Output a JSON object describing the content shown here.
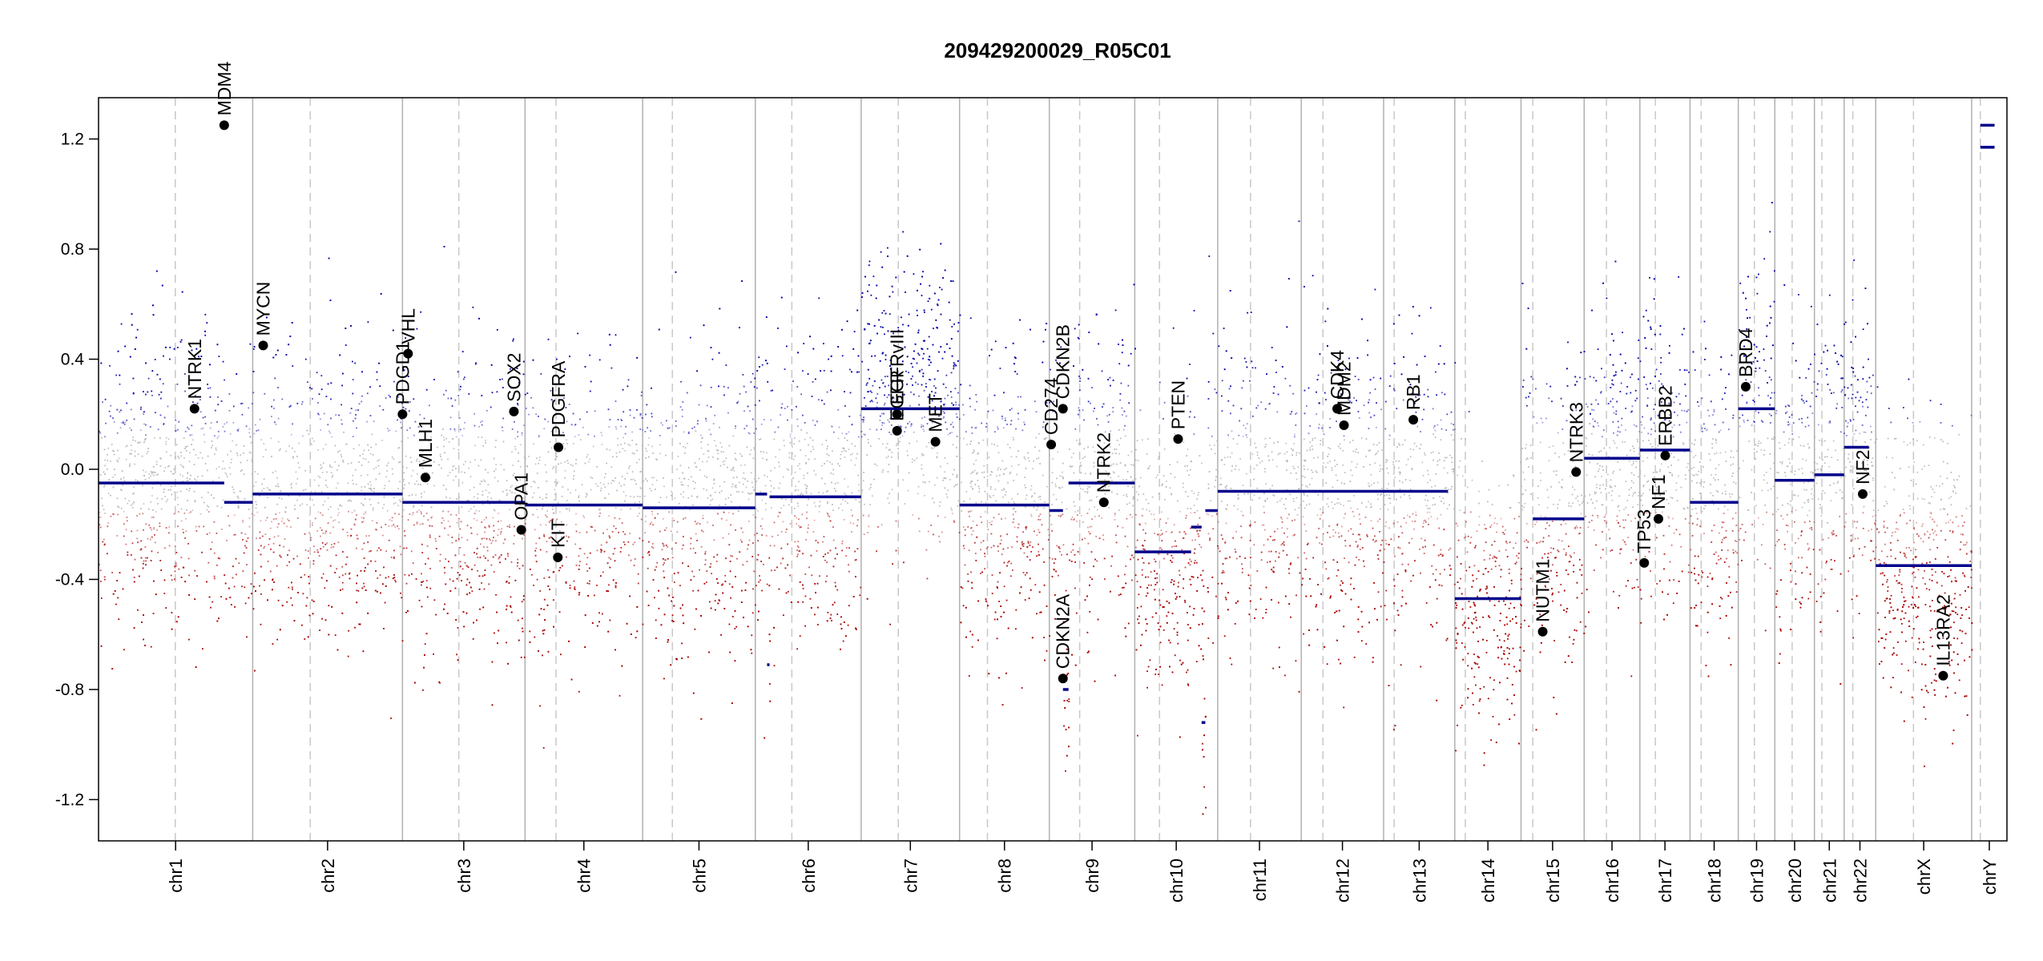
{
  "chart_data": {
    "type": "scatter",
    "title": "209429200029_R05C01",
    "xlabel": "",
    "ylabel": "",
    "ylim": [
      -1.35,
      1.35
    ],
    "y_ticks": [
      -1.2,
      -0.8,
      -0.4,
      0.0,
      0.4,
      0.8,
      1.2
    ],
    "y_tick_labels": [
      "-1.2",
      "-0.8",
      "-0.4",
      "0.0",
      "0.4",
      "0.8",
      "1.2"
    ],
    "grid": false,
    "colors": {
      "gain": "#0000aa",
      "neutral": "#bbbbbb",
      "loss": "#aa0000",
      "segment": "#00008b",
      "boundary": "#b0b0b0",
      "centromere": "#c8c8c8"
    },
    "chromosomes": [
      {
        "name": "chr1",
        "start": 0,
        "end": 249,
        "centromere": 124
      },
      {
        "name": "chr2",
        "start": 249,
        "end": 491,
        "centromere": 342
      },
      {
        "name": "chr3",
        "start": 491,
        "end": 689,
        "centromere": 582
      },
      {
        "name": "chr4",
        "start": 689,
        "end": 879,
        "centromere": 739
      },
      {
        "name": "chr5",
        "start": 879,
        "end": 1061,
        "centromere": 927
      },
      {
        "name": "chr6",
        "start": 1061,
        "end": 1232,
        "centromere": 1120
      },
      {
        "name": "chr7",
        "start": 1232,
        "end": 1391,
        "centromere": 1292
      },
      {
        "name": "chr8",
        "start": 1391,
        "end": 1536,
        "centromere": 1436
      },
      {
        "name": "chr9",
        "start": 1536,
        "end": 1674,
        "centromere": 1585
      },
      {
        "name": "chr10",
        "start": 1674,
        "end": 1808,
        "centromere": 1714
      },
      {
        "name": "chr11",
        "start": 1808,
        "end": 1943,
        "centromere": 1861
      },
      {
        "name": "chr12",
        "start": 1943,
        "end": 2076,
        "centromere": 1978
      },
      {
        "name": "chr13",
        "start": 2076,
        "end": 2191,
        "centromere": 2093
      },
      {
        "name": "chr14",
        "start": 2191,
        "end": 2298,
        "centromere": 2208
      },
      {
        "name": "chr15",
        "start": 2298,
        "end": 2400,
        "centromere": 2317
      },
      {
        "name": "chr16",
        "start": 2400,
        "end": 2490,
        "centromere": 2436
      },
      {
        "name": "chr17",
        "start": 2490,
        "end": 2571,
        "centromere": 2515
      },
      {
        "name": "chr18",
        "start": 2571,
        "end": 2649,
        "centromere": 2589
      },
      {
        "name": "chr19",
        "start": 2649,
        "end": 2708,
        "centromere": 2675
      },
      {
        "name": "chr20",
        "start": 2708,
        "end": 2772,
        "centromere": 2736
      },
      {
        "name": "chr21",
        "start": 2772,
        "end": 2820,
        "centromere": 2784
      },
      {
        "name": "chr22",
        "start": 2820,
        "end": 2871,
        "centromere": 2834
      },
      {
        "name": "chrX",
        "start": 2871,
        "end": 3026,
        "centromere": 2932
      },
      {
        "name": "chrY",
        "start": 3026,
        "end": 3083,
        "centromere": 3040
      }
    ],
    "segments": [
      {
        "start": 0,
        "end": 203,
        "value": -0.05
      },
      {
        "start": 203,
        "end": 249,
        "value": -0.12
      },
      {
        "start": 249,
        "end": 491,
        "value": -0.09
      },
      {
        "start": 491,
        "end": 689,
        "value": -0.12
      },
      {
        "start": 689,
        "end": 879,
        "value": -0.13
      },
      {
        "start": 879,
        "end": 1061,
        "value": -0.14
      },
      {
        "start": 1061,
        "end": 1080,
        "value": -0.09
      },
      {
        "start": 1080,
        "end": 1084,
        "value": -0.71
      },
      {
        "start": 1084,
        "end": 1232,
        "value": -0.1
      },
      {
        "start": 1232,
        "end": 1391,
        "value": 0.22
      },
      {
        "start": 1391,
        "end": 1536,
        "value": -0.13
      },
      {
        "start": 1536,
        "end": 1558,
        "value": -0.15
      },
      {
        "start": 1558,
        "end": 1567,
        "value": -0.8
      },
      {
        "start": 1567,
        "end": 1674,
        "value": -0.05
      },
      {
        "start": 1674,
        "end": 1765,
        "value": -0.3
      },
      {
        "start": 1765,
        "end": 1782,
        "value": -0.21
      },
      {
        "start": 1782,
        "end": 1788,
        "value": -0.92
      },
      {
        "start": 1788,
        "end": 1808,
        "value": -0.15
      },
      {
        "start": 1808,
        "end": 1943,
        "value": -0.08
      },
      {
        "start": 1943,
        "end": 2076,
        "value": -0.08
      },
      {
        "start": 2076,
        "end": 2180,
        "value": -0.08
      },
      {
        "start": 2191,
        "end": 2298,
        "value": -0.47
      },
      {
        "start": 2317,
        "end": 2400,
        "value": -0.18
      },
      {
        "start": 2400,
        "end": 2490,
        "value": 0.04
      },
      {
        "start": 2490,
        "end": 2571,
        "value": 0.07
      },
      {
        "start": 2571,
        "end": 2649,
        "value": -0.12
      },
      {
        "start": 2649,
        "end": 2708,
        "value": 0.22
      },
      {
        "start": 2708,
        "end": 2772,
        "value": -0.04
      },
      {
        "start": 2772,
        "end": 2820,
        "value": -0.02
      },
      {
        "start": 2820,
        "end": 2860,
        "value": 0.08
      },
      {
        "start": 2871,
        "end": 3026,
        "value": -0.35
      },
      {
        "start": 3040,
        "end": 3063,
        "value": 1.25
      },
      {
        "start": 3040,
        "end": 3063,
        "value": 1.17
      }
    ],
    "genes": [
      {
        "name": "NTRK1",
        "x": 155,
        "y": 0.22
      },
      {
        "name": "MDM4",
        "x": 203,
        "y": 1.25
      },
      {
        "name": "MYCN",
        "x": 266,
        "y": 0.45
      },
      {
        "name": "PDGD1",
        "x": 491,
        "y": 0.2
      },
      {
        "name": "VHL",
        "x": 500,
        "y": 0.42
      },
      {
        "name": "MLH1",
        "x": 528,
        "y": -0.03
      },
      {
        "name": "SOX2",
        "x": 671,
        "y": 0.21
      },
      {
        "name": "OPA1",
        "x": 683,
        "y": -0.22
      },
      {
        "name": "PDGFRA",
        "x": 743,
        "y": 0.08
      },
      {
        "name": "KIT",
        "x": 742,
        "y": -0.32
      },
      {
        "name": "EGFRvIII",
        "x": 1290,
        "y": 0.2
      },
      {
        "name": "EGFR",
        "x": 1290,
        "y": 0.14
      },
      {
        "name": "MET",
        "x": 1352,
        "y": 0.1
      },
      {
        "name": "CD274",
        "x": 1539,
        "y": 0.09
      },
      {
        "name": "CDKN2B",
        "x": 1558,
        "y": 0.22
      },
      {
        "name": "CDKN2A",
        "x": 1558,
        "y": -0.76
      },
      {
        "name": "NTRK2",
        "x": 1624,
        "y": -0.12
      },
      {
        "name": "PTEN",
        "x": 1744,
        "y": 0.11
      },
      {
        "name": "CDK4",
        "x": 2001,
        "y": 0.22
      },
      {
        "name": "MDM2",
        "x": 2012,
        "y": 0.16
      },
      {
        "name": "RB1",
        "x": 2124,
        "y": 0.18
      },
      {
        "name": "NUTM1",
        "x": 2333,
        "y": -0.59
      },
      {
        "name": "NTRK3",
        "x": 2387,
        "y": -0.01
      },
      {
        "name": "TP53",
        "x": 2497,
        "y": -0.34
      },
      {
        "name": "NF1",
        "x": 2520,
        "y": -0.18
      },
      {
        "name": "ERBB2",
        "x": 2531,
        "y": 0.05
      },
      {
        "name": "BRD4",
        "x": 2661,
        "y": 0.3
      },
      {
        "name": "NF2",
        "x": 2850,
        "y": -0.09
      },
      {
        "name": "IL13RA2",
        "x": 2980,
        "y": -0.75
      }
    ]
  }
}
